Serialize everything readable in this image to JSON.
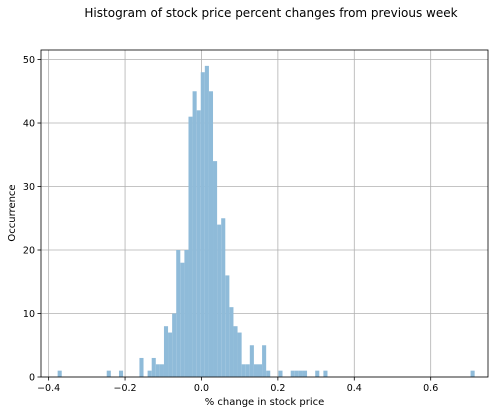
{
  "chart_data": {
    "type": "bar",
    "title": "Histogram of stock price percent changes from previous week",
    "xlabel": "% change in stock price",
    "ylabel": "Occurrence",
    "xlim": [
      -0.42,
      0.75
    ],
    "ylim": [
      0,
      51.5
    ],
    "x_ticks": [
      -0.4,
      -0.2,
      0.0,
      0.2,
      0.4,
      0.6
    ],
    "x_tick_labels": [
      "−0.4",
      "−0.2",
      "0.0",
      "0.2",
      "0.4",
      "0.6"
    ],
    "y_ticks": [
      0,
      10,
      20,
      30,
      40,
      50
    ],
    "y_tick_labels": [
      "0",
      "10",
      "20",
      "30",
      "40",
      "50"
    ],
    "grid": true,
    "bar_color": "#8fbbd9",
    "bin_width": 0.0107,
    "bins": [
      {
        "x": -0.3711,
        "count": 1
      },
      {
        "x": -0.2426,
        "count": 1
      },
      {
        "x": -0.2105,
        "count": 1
      },
      {
        "x": -0.157,
        "count": 3
      },
      {
        "x": -0.1356,
        "count": 1
      },
      {
        "x": -0.1249,
        "count": 3
      },
      {
        "x": -0.1142,
        "count": 2
      },
      {
        "x": -0.1035,
        "count": 2
      },
      {
        "x": -0.0928,
        "count": 8
      },
      {
        "x": -0.0821,
        "count": 7
      },
      {
        "x": -0.0714,
        "count": 10
      },
      {
        "x": -0.0607,
        "count": 20
      },
      {
        "x": -0.05,
        "count": 18
      },
      {
        "x": -0.0393,
        "count": 20
      },
      {
        "x": -0.0286,
        "count": 41
      },
      {
        "x": -0.0179,
        "count": 45
      },
      {
        "x": -0.0072,
        "count": 42
      },
      {
        "x": 0.0035,
        "count": 48
      },
      {
        "x": 0.0142,
        "count": 49
      },
      {
        "x": 0.0249,
        "count": 45
      },
      {
        "x": 0.0356,
        "count": 34
      },
      {
        "x": 0.0463,
        "count": 24
      },
      {
        "x": 0.057,
        "count": 25
      },
      {
        "x": 0.0677,
        "count": 16
      },
      {
        "x": 0.0784,
        "count": 11
      },
      {
        "x": 0.0891,
        "count": 8
      },
      {
        "x": 0.0998,
        "count": 7
      },
      {
        "x": 0.1105,
        "count": 2
      },
      {
        "x": 0.1212,
        "count": 2
      },
      {
        "x": 0.1319,
        "count": 5
      },
      {
        "x": 0.1426,
        "count": 2
      },
      {
        "x": 0.1533,
        "count": 2
      },
      {
        "x": 0.164,
        "count": 5
      },
      {
        "x": 0.1747,
        "count": 1
      },
      {
        "x": 0.2068,
        "count": 1
      },
      {
        "x": 0.2389,
        "count": 1
      },
      {
        "x": 0.2496,
        "count": 1
      },
      {
        "x": 0.2603,
        "count": 1
      },
      {
        "x": 0.271,
        "count": 1
      },
      {
        "x": 0.3031,
        "count": 1
      },
      {
        "x": 0.3245,
        "count": 1
      },
      {
        "x": 0.7097,
        "count": 1
      }
    ]
  }
}
